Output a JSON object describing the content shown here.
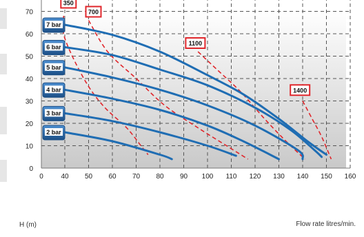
{
  "chart_data": {
    "type": "line",
    "title": "",
    "xlabel": "Flow rate litres/min.",
    "ylabel": "H (m)",
    "xlim": [
      0,
      160
    ],
    "ylim": [
      0,
      80
    ],
    "xticks": [
      0,
      40,
      50,
      60,
      70,
      80,
      90,
      100,
      110,
      120,
      130,
      140,
      150,
      160
    ],
    "yticks": [
      0,
      10,
      20,
      30,
      40,
      50,
      60,
      70,
      80
    ],
    "grid": true,
    "colors": {
      "curve": "#1f6db3",
      "iso": "#e0262b",
      "label_fill": "#2f6fb2",
      "label_border_dark": "#1c4f86"
    },
    "series": [
      {
        "name": "2 bar",
        "points": [
          [
            40,
            16
          ],
          [
            60,
            12
          ],
          [
            80,
            6
          ],
          [
            85,
            4
          ]
        ]
      },
      {
        "name": "3 bar",
        "points": [
          [
            40,
            24.5
          ],
          [
            60,
            21
          ],
          [
            80,
            16
          ],
          [
            100,
            10
          ],
          [
            112,
            5.5
          ]
        ]
      },
      {
        "name": "4 bar",
        "points": [
          [
            40,
            35
          ],
          [
            60,
            31
          ],
          [
            80,
            26
          ],
          [
            100,
            19
          ],
          [
            115,
            12
          ],
          [
            130,
            4
          ]
        ]
      },
      {
        "name": "5 bar",
        "points": [
          [
            40,
            45
          ],
          [
            60,
            40.5
          ],
          [
            80,
            35
          ],
          [
            100,
            28
          ],
          [
            120,
            19
          ],
          [
            138,
            8
          ],
          [
            140,
            4
          ]
        ]
      },
      {
        "name": "6 bar",
        "points": [
          [
            40,
            54
          ],
          [
            60,
            50.5
          ],
          [
            80,
            44
          ],
          [
            100,
            37
          ],
          [
            120,
            27
          ],
          [
            135,
            17
          ],
          [
            145,
            8
          ],
          [
            148,
            5
          ]
        ]
      },
      {
        "name": "7 bar",
        "points": [
          [
            40,
            64
          ],
          [
            60,
            59.5
          ],
          [
            80,
            52
          ],
          [
            100,
            41.5
          ],
          [
            115,
            33
          ],
          [
            130,
            22
          ],
          [
            142,
            12
          ],
          [
            150,
            6
          ]
        ]
      }
    ],
    "iso_lines": [
      {
        "name": "350",
        "label_at": [
          38,
          74
        ],
        "points": [
          [
            38,
            68
          ],
          [
            40,
            58
          ],
          [
            48,
            40
          ],
          [
            56,
            28
          ],
          [
            66,
            18
          ],
          [
            72,
            10
          ],
          [
            75,
            6
          ]
        ]
      },
      {
        "name": "700",
        "label_at": [
          50,
          70
        ],
        "points": [
          [
            50,
            66
          ],
          [
            58,
            52
          ],
          [
            70,
            40
          ],
          [
            82,
            28
          ],
          [
            96,
            18
          ],
          [
            108,
            10
          ],
          [
            117,
            4
          ]
        ]
      },
      {
        "name": "1100",
        "label_at": [
          92,
          56
        ],
        "points": [
          [
            96,
            52
          ],
          [
            104,
            44
          ],
          [
            114,
            34
          ],
          [
            124,
            22
          ],
          [
            133,
            12
          ],
          [
            141,
            4
          ]
        ]
      },
      {
        "name": "1400",
        "label_at": [
          136,
          35
        ],
        "points": [
          [
            140,
            30
          ],
          [
            144,
            22
          ],
          [
            148,
            14
          ],
          [
            152,
            4
          ]
        ]
      }
    ]
  }
}
